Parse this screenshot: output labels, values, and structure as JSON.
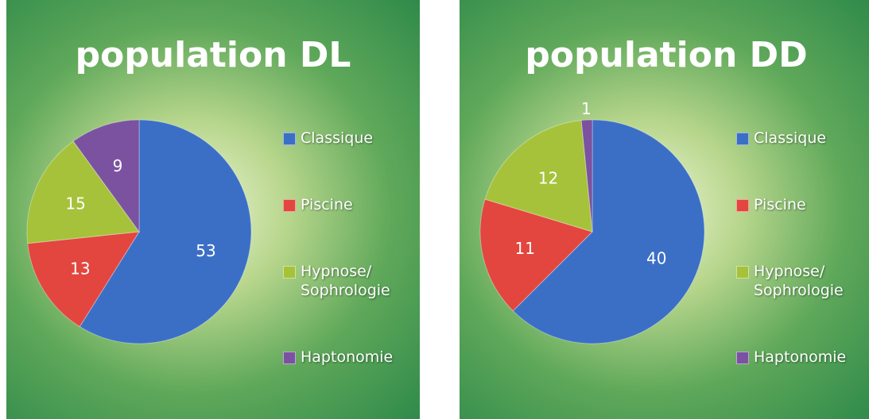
{
  "chart_data": [
    {
      "type": "pie",
      "title": "population DL",
      "categories": [
        "Classique",
        "Piscine",
        "Hypnose/ Sophrologie",
        "Haptonomie"
      ],
      "values": [
        53,
        13,
        15,
        9
      ],
      "colors": [
        "#3b6fc6",
        "#e2463f",
        "#a6c23a",
        "#7b52a0"
      ]
    },
    {
      "type": "pie",
      "title": "population DD",
      "categories": [
        "Classique",
        "Piscine",
        "Hypnose/ Sophrologie",
        "Haptonomie"
      ],
      "values": [
        40,
        11,
        12,
        1
      ],
      "colors": [
        "#3b6fc6",
        "#e2463f",
        "#a6c23a",
        "#7b52a0"
      ]
    }
  ]
}
